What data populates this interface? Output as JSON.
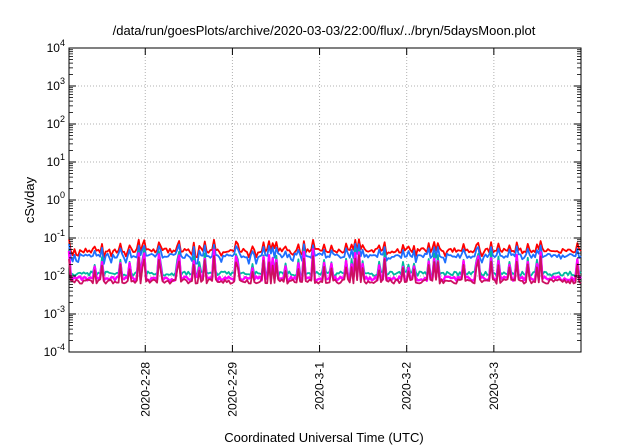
{
  "chart_data": {
    "type": "line",
    "title": "/data/run/goesPlots/archive/2020-03-03/22:00/flux/../bryn/5daysMoon.plot",
    "xlabel": "Coordinated Universal Time (UTC)",
    "ylabel": "cSv/day",
    "yscale": "log",
    "ylim": [
      0.0001,
      10000
    ],
    "y_tick_labels": [
      {
        "base": "10",
        "exp": "-4"
      },
      {
        "base": "10",
        "exp": "-3"
      },
      {
        "base": "10",
        "exp": "-2"
      },
      {
        "base": "10",
        "exp": "-1"
      },
      {
        "base": "10",
        "exp": "0"
      },
      {
        "base": "10",
        "exp": "1"
      },
      {
        "base": "10",
        "exp": "2"
      },
      {
        "base": "10",
        "exp": "3"
      },
      {
        "base": "10",
        "exp": "4"
      }
    ],
    "xlim": [
      "2020-02-27T03:00",
      "2020-03-04T00:00"
    ],
    "x_ticks": [
      "2020-02-28",
      "2020-02-29",
      "2020-03-01",
      "2020-03-02",
      "2020-03-03"
    ],
    "x_tick_labels": [
      "2020-2-28",
      "2020-2-29",
      "2020-3-1",
      "2020-3-2",
      "2020-3-3"
    ],
    "grid": true,
    "legend": "none",
    "series": [
      {
        "color": "#ff0000",
        "baseline": 0.047,
        "spike_max": 0.095,
        "dip_min": 0.03
      },
      {
        "color": "#1e6fff",
        "baseline": 0.034,
        "spike_max": 0.075,
        "dip_min": 0.02
      },
      {
        "color": "#00b8a0",
        "baseline": 0.0115,
        "spike_max": 0.06,
        "dip_min": 0.009
      },
      {
        "color": "#ff00ff",
        "baseline": 0.0085,
        "spike_max": 0.055,
        "dip_min": 0.0055
      },
      {
        "color": "#cc1060",
        "baseline": 0.0072,
        "spike_max": 0.04,
        "dip_min": 0.005
      }
    ]
  }
}
